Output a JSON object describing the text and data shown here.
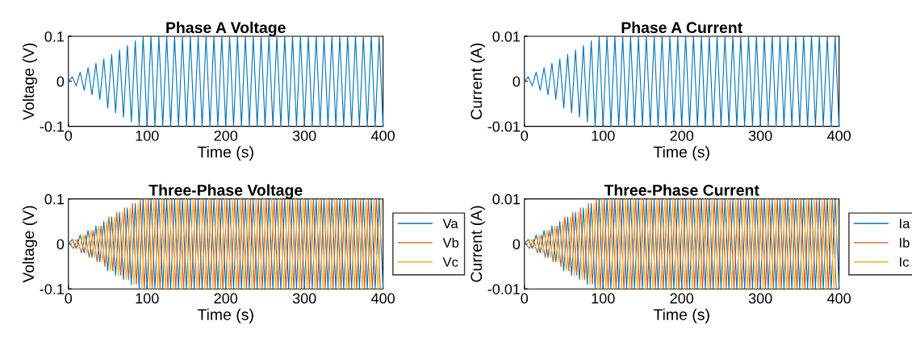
{
  "chart_data": [
    {
      "type": "line",
      "title": "Phase A Voltage",
      "xlabel": "Time (s)",
      "ylabel": "Voltage (V)",
      "xlim": [
        0,
        400
      ],
      "xticks": [
        0,
        100,
        200,
        300,
        400
      ],
      "ylim": [
        -0.1,
        0.1
      ],
      "yticks": [
        -0.1,
        0,
        0.1
      ],
      "grid": false,
      "legend": false,
      "x": [
        0,
        5,
        10,
        15,
        20,
        25,
        30,
        35,
        40,
        45,
        50,
        55,
        60,
        65,
        70,
        75,
        80,
        85,
        90,
        95,
        100,
        105,
        110,
        115,
        120,
        125,
        130,
        135,
        140,
        145,
        150,
        155,
        160,
        165,
        170,
        175,
        180,
        185,
        190,
        195,
        200,
        205,
        210,
        215,
        220,
        225,
        230,
        235,
        240,
        245,
        250,
        255,
        260,
        265,
        270,
        275,
        280,
        285,
        290,
        295,
        300,
        305,
        310,
        315,
        320,
        325,
        330,
        335,
        340,
        345,
        350,
        355,
        360,
        365,
        370,
        375,
        380,
        385,
        390,
        395,
        400
      ],
      "series": [
        {
          "color": "#0072bd",
          "values": [
            0,
            0.01,
            -0.01,
            0.02,
            -0.02,
            0.03,
            -0.03,
            0.04,
            -0.04,
            0.05,
            -0.06,
            0.06,
            -0.07,
            0.07,
            -0.08,
            0.08,
            -0.09,
            0.09,
            -0.1,
            0.1,
            -0.1,
            0.1,
            -0.1,
            0.1,
            -0.1,
            0.1,
            -0.1,
            0.1,
            -0.1,
            0.1,
            -0.1,
            0.1,
            -0.1,
            0.1,
            -0.1,
            0.1,
            -0.1,
            0.1,
            -0.1,
            0.1,
            -0.1,
            0.1,
            -0.1,
            0.1,
            -0.1,
            0.1,
            -0.1,
            0.1,
            -0.1,
            0.1,
            -0.1,
            0.1,
            -0.1,
            0.1,
            -0.1,
            0.1,
            -0.1,
            0.1,
            -0.1,
            0.1,
            -0.1,
            0.1,
            -0.1,
            0.1,
            -0.1,
            0.1,
            -0.1,
            0.1,
            -0.1,
            0.1,
            -0.1,
            0.1,
            -0.1,
            0.1,
            -0.1,
            0.1,
            -0.1,
            0.1,
            -0.1,
            0.1,
            -0.1
          ]
        }
      ]
    },
    {
      "type": "line",
      "title": "Phase A Current",
      "xlabel": "Time (s)",
      "ylabel": "Current (A)",
      "xlim": [
        0,
        400
      ],
      "xticks": [
        0,
        100,
        200,
        300,
        400
      ],
      "ylim": [
        -0.01,
        0.01
      ],
      "yticks": [
        -0.01,
        0,
        0.01
      ],
      "grid": false,
      "legend": false,
      "x": [
        0,
        5,
        10,
        15,
        20,
        25,
        30,
        35,
        40,
        45,
        50,
        55,
        60,
        65,
        70,
        75,
        80,
        85,
        90,
        95,
        100,
        105,
        110,
        115,
        120,
        125,
        130,
        135,
        140,
        145,
        150,
        155,
        160,
        165,
        170,
        175,
        180,
        185,
        190,
        195,
        200,
        205,
        210,
        215,
        220,
        225,
        230,
        235,
        240,
        245,
        250,
        255,
        260,
        265,
        270,
        275,
        280,
        285,
        290,
        295,
        300,
        305,
        310,
        315,
        320,
        325,
        330,
        335,
        340,
        345,
        350,
        355,
        360,
        365,
        370,
        375,
        380,
        385,
        390,
        395,
        400
      ],
      "series": [
        {
          "color": "#0072bd",
          "values": [
            0,
            0.001,
            -0.001,
            0.002,
            -0.002,
            0.003,
            -0.003,
            0.004,
            -0.004,
            0.005,
            -0.006,
            0.006,
            -0.007,
            0.007,
            -0.008,
            0.008,
            -0.009,
            0.009,
            -0.01,
            0.01,
            -0.01,
            0.01,
            -0.01,
            0.01,
            -0.01,
            0.01,
            -0.01,
            0.01,
            -0.01,
            0.01,
            -0.01,
            0.01,
            -0.01,
            0.01,
            -0.01,
            0.01,
            -0.01,
            0.01,
            -0.01,
            0.01,
            -0.01,
            0.01,
            -0.01,
            0.01,
            -0.01,
            0.01,
            -0.01,
            0.01,
            -0.01,
            0.01,
            -0.01,
            0.01,
            -0.01,
            0.01,
            -0.01,
            0.01,
            -0.01,
            0.01,
            -0.01,
            0.01,
            -0.01,
            0.01,
            -0.01,
            0.01,
            -0.01,
            0.01,
            -0.01,
            0.01,
            -0.01,
            0.01,
            -0.01,
            0.01,
            -0.01,
            0.01,
            -0.01,
            0.01,
            -0.01,
            0.01,
            -0.01,
            0.01,
            -0.01
          ]
        }
      ]
    },
    {
      "type": "line",
      "title": "Three-Phase Voltage",
      "xlabel": "Time (s)",
      "ylabel": "Voltage (V)",
      "xlim": [
        0,
        400
      ],
      "xticks": [
        0,
        100,
        200,
        300,
        400
      ],
      "ylim": [
        -0.1,
        0.1
      ],
      "yticks": [
        -0.1,
        0,
        0.1
      ],
      "grid": false,
      "legend": "right",
      "x": [
        0,
        5,
        10,
        15,
        20,
        25,
        30,
        35,
        40,
        45,
        50,
        55,
        60,
        65,
        70,
        75,
        80,
        85,
        90,
        95,
        100,
        105,
        110,
        115,
        120,
        125,
        130,
        135,
        140,
        145,
        150,
        155,
        160,
        165,
        170,
        175,
        180,
        185,
        190,
        195,
        200,
        205,
        210,
        215,
        220,
        225,
        230,
        235,
        240,
        245,
        250,
        255,
        260,
        265,
        270,
        275,
        280,
        285,
        290,
        295,
        300,
        305,
        310,
        315,
        320,
        325,
        330,
        335,
        340,
        345,
        350,
        355,
        360,
        365,
        370,
        375,
        380,
        385,
        390,
        395,
        400
      ],
      "series": [
        {
          "name": "Va",
          "color": "#0072bd",
          "values": [
            0,
            0.01,
            -0.01,
            0.02,
            -0.02,
            0.03,
            -0.03,
            0.04,
            -0.04,
            0.05,
            -0.06,
            0.06,
            -0.07,
            0.07,
            -0.08,
            0.08,
            -0.09,
            0.09,
            -0.1,
            0.1,
            -0.1,
            0.1,
            -0.1,
            0.1,
            -0.1,
            0.1,
            -0.1,
            0.1,
            -0.1,
            0.1,
            -0.1,
            0.1,
            -0.1,
            0.1,
            -0.1,
            0.1,
            -0.1,
            0.1,
            -0.1,
            0.1,
            -0.1,
            0.1,
            -0.1,
            0.1,
            -0.1,
            0.1,
            -0.1,
            0.1,
            -0.1,
            0.1,
            -0.1,
            0.1,
            -0.1,
            0.1,
            -0.1,
            0.1,
            -0.1,
            0.1,
            -0.1,
            0.1,
            -0.1,
            0.1,
            -0.1,
            0.1,
            -0.1,
            0.1,
            -0.1,
            0.1,
            -0.1,
            0.1,
            -0.1,
            0.1,
            -0.1,
            0.1,
            -0.1,
            0.1,
            -0.1,
            0.1,
            -0.1,
            0.1,
            -0.1
          ]
        },
        {
          "name": "Vb",
          "color": "#d95319",
          "x": [
            1.5,
            6.5,
            11.5,
            16.5,
            21.5,
            26.5,
            31.5,
            36.5,
            41.5,
            46.5,
            51.5,
            56.5,
            61.5,
            66.5,
            71.5,
            76.5,
            81.5,
            86.5,
            91.5,
            96.5,
            101.5,
            106.5,
            111.5,
            116.5,
            121.5,
            126.5,
            131.5,
            136.5,
            141.5,
            146.5,
            151.5,
            156.5,
            161.5,
            166.5,
            171.5,
            176.5,
            181.5,
            186.5,
            191.5,
            196.5,
            201.5,
            206.5,
            211.5,
            216.5,
            221.5,
            226.5,
            231.5,
            236.5,
            241.5,
            246.5,
            251.5,
            256.5,
            261.5,
            266.5,
            271.5,
            276.5,
            281.5,
            286.5,
            291.5,
            296.5,
            301.5,
            306.5,
            311.5,
            316.5,
            321.5,
            326.5,
            331.5,
            336.5,
            341.5,
            346.5,
            351.5,
            356.5,
            361.5,
            366.5,
            371.5,
            376.5,
            381.5,
            386.5,
            391.5,
            396.5
          ],
          "values": [
            0,
            -0.01,
            0.01,
            -0.02,
            0.02,
            -0.03,
            0.03,
            -0.04,
            0.04,
            -0.05,
            0.06,
            -0.06,
            0.07,
            -0.07,
            0.08,
            -0.08,
            0.09,
            -0.09,
            0.1,
            -0.1,
            0.1,
            -0.1,
            0.1,
            -0.1,
            0.1,
            -0.1,
            0.1,
            -0.1,
            0.1,
            -0.1,
            0.1,
            -0.1,
            0.1,
            -0.1,
            0.1,
            -0.1,
            0.1,
            -0.1,
            0.1,
            -0.1,
            0.1,
            -0.1,
            0.1,
            -0.1,
            0.1,
            -0.1,
            0.1,
            -0.1,
            0.1,
            -0.1,
            0.1,
            -0.1,
            0.1,
            -0.1,
            0.1,
            -0.1,
            0.1,
            -0.1,
            0.1,
            -0.1,
            0.1,
            -0.1,
            0.1,
            -0.1,
            0.1,
            -0.1,
            0.1,
            -0.1,
            0.1,
            -0.1,
            0.1,
            -0.1,
            0.1,
            -0.1,
            0.1,
            -0.1,
            0.1,
            -0.1,
            0.1,
            -0.1
          ]
        },
        {
          "name": "Vc",
          "color": "#edb120",
          "x": [
            3.5,
            8.5,
            13.5,
            18.5,
            23.5,
            28.5,
            33.5,
            38.5,
            43.5,
            48.5,
            53.5,
            58.5,
            63.5,
            68.5,
            73.5,
            78.5,
            83.5,
            88.5,
            93.5,
            98.5,
            103.5,
            108.5,
            113.5,
            118.5,
            123.5,
            128.5,
            133.5,
            138.5,
            143.5,
            148.5,
            153.5,
            158.5,
            163.5,
            168.5,
            173.5,
            178.5,
            183.5,
            188.5,
            193.5,
            198.5,
            203.5,
            208.5,
            213.5,
            218.5,
            223.5,
            228.5,
            233.5,
            238.5,
            243.5,
            248.5,
            253.5,
            258.5,
            263.5,
            268.5,
            273.5,
            278.5,
            283.5,
            288.5,
            293.5,
            298.5,
            303.5,
            308.5,
            313.5,
            318.5,
            323.5,
            328.5,
            333.5,
            338.5,
            343.5,
            348.5,
            353.5,
            358.5,
            363.5,
            368.5,
            373.5,
            378.5,
            383.5,
            388.5,
            393.5,
            398.5
          ],
          "values": [
            0,
            0.01,
            -0.01,
            0.02,
            -0.02,
            0.03,
            -0.03,
            0.04,
            -0.04,
            0.05,
            -0.06,
            0.06,
            -0.07,
            0.07,
            -0.08,
            0.08,
            -0.09,
            0.09,
            -0.1,
            0.1,
            -0.1,
            0.1,
            -0.1,
            0.1,
            -0.1,
            0.1,
            -0.1,
            0.1,
            -0.1,
            0.1,
            -0.1,
            0.1,
            -0.1,
            0.1,
            -0.1,
            0.1,
            -0.1,
            0.1,
            -0.1,
            0.1,
            -0.1,
            0.1,
            -0.1,
            0.1,
            -0.1,
            0.1,
            -0.1,
            0.1,
            -0.1,
            0.1,
            -0.1,
            0.1,
            -0.1,
            0.1,
            -0.1,
            0.1,
            -0.1,
            0.1,
            -0.1,
            0.1,
            -0.1,
            0.1,
            -0.1,
            0.1,
            -0.1,
            0.1,
            -0.1,
            0.1,
            -0.1,
            0.1,
            -0.1,
            0.1,
            -0.1,
            0.1,
            -0.1,
            0.1,
            -0.1,
            0.1,
            -0.1,
            0.1
          ]
        }
      ]
    },
    {
      "type": "line",
      "title": "Three-Phase Current",
      "xlabel": "Time (s)",
      "ylabel": "Current (A)",
      "xlim": [
        0,
        400
      ],
      "xticks": [
        0,
        100,
        200,
        300,
        400
      ],
      "ylim": [
        -0.01,
        0.01
      ],
      "yticks": [
        -0.01,
        0,
        0.01
      ],
      "grid": false,
      "legend": "right",
      "x": [
        0,
        5,
        10,
        15,
        20,
        25,
        30,
        35,
        40,
        45,
        50,
        55,
        60,
        65,
        70,
        75,
        80,
        85,
        90,
        95,
        100,
        105,
        110,
        115,
        120,
        125,
        130,
        135,
        140,
        145,
        150,
        155,
        160,
        165,
        170,
        175,
        180,
        185,
        190,
        195,
        200,
        205,
        210,
        215,
        220,
        225,
        230,
        235,
        240,
        245,
        250,
        255,
        260,
        265,
        270,
        275,
        280,
        285,
        290,
        295,
        300,
        305,
        310,
        315,
        320,
        325,
        330,
        335,
        340,
        345,
        350,
        355,
        360,
        365,
        370,
        375,
        380,
        385,
        390,
        395,
        400
      ],
      "series": [
        {
          "name": "Ia",
          "color": "#0072bd",
          "values": [
            0,
            0.001,
            -0.001,
            0.002,
            -0.002,
            0.003,
            -0.003,
            0.004,
            -0.004,
            0.005,
            -0.006,
            0.006,
            -0.007,
            0.007,
            -0.008,
            0.008,
            -0.009,
            0.009,
            -0.01,
            0.01,
            -0.01,
            0.01,
            -0.01,
            0.01,
            -0.01,
            0.01,
            -0.01,
            0.01,
            -0.01,
            0.01,
            -0.01,
            0.01,
            -0.01,
            0.01,
            -0.01,
            0.01,
            -0.01,
            0.01,
            -0.01,
            0.01,
            -0.01,
            0.01,
            -0.01,
            0.01,
            -0.01,
            0.01,
            -0.01,
            0.01,
            -0.01,
            0.01,
            -0.01,
            0.01,
            -0.01,
            0.01,
            -0.01,
            0.01,
            -0.01,
            0.01,
            -0.01,
            0.01,
            -0.01,
            0.01,
            -0.01,
            0.01,
            -0.01,
            0.01,
            -0.01,
            0.01,
            -0.01,
            0.01,
            -0.01,
            0.01,
            -0.01,
            0.01,
            -0.01,
            0.01,
            -0.01,
            0.01,
            -0.01,
            0.01,
            -0.01
          ]
        },
        {
          "name": "Ib",
          "color": "#d95319",
          "x": [
            1.5,
            6.5,
            11.5,
            16.5,
            21.5,
            26.5,
            31.5,
            36.5,
            41.5,
            46.5,
            51.5,
            56.5,
            61.5,
            66.5,
            71.5,
            76.5,
            81.5,
            86.5,
            91.5,
            96.5,
            101.5,
            106.5,
            111.5,
            116.5,
            121.5,
            126.5,
            131.5,
            136.5,
            141.5,
            146.5,
            151.5,
            156.5,
            161.5,
            166.5,
            171.5,
            176.5,
            181.5,
            186.5,
            191.5,
            196.5,
            201.5,
            206.5,
            211.5,
            216.5,
            221.5,
            226.5,
            231.5,
            236.5,
            241.5,
            246.5,
            251.5,
            256.5,
            261.5,
            266.5,
            271.5,
            276.5,
            281.5,
            286.5,
            291.5,
            296.5,
            301.5,
            306.5,
            311.5,
            316.5,
            321.5,
            326.5,
            331.5,
            336.5,
            341.5,
            346.5,
            351.5,
            356.5,
            361.5,
            366.5,
            371.5,
            376.5,
            381.5,
            386.5,
            391.5,
            396.5
          ],
          "values": [
            0,
            -0.001,
            0.001,
            -0.002,
            0.002,
            -0.003,
            0.003,
            -0.004,
            0.004,
            -0.005,
            0.006,
            -0.006,
            0.007,
            -0.007,
            0.008,
            -0.008,
            0.009,
            -0.009,
            0.01,
            -0.01,
            0.01,
            -0.01,
            0.01,
            -0.01,
            0.01,
            -0.01,
            0.01,
            -0.01,
            0.01,
            -0.01,
            0.01,
            -0.01,
            0.01,
            -0.01,
            0.01,
            -0.01,
            0.01,
            -0.01,
            0.01,
            -0.01,
            0.01,
            -0.01,
            0.01,
            -0.01,
            0.01,
            -0.01,
            0.01,
            -0.01,
            0.01,
            -0.01,
            0.01,
            -0.01,
            0.01,
            -0.01,
            0.01,
            -0.01,
            0.01,
            -0.01,
            0.01,
            -0.01,
            0.01,
            -0.01,
            0.01,
            -0.01,
            0.01,
            -0.01,
            0.01,
            -0.01,
            0.01,
            -0.01,
            0.01,
            -0.01,
            0.01,
            -0.01,
            0.01,
            -0.01,
            0.01,
            -0.01,
            0.01,
            -0.01
          ]
        },
        {
          "name": "Ic",
          "color": "#edb120",
          "x": [
            3.5,
            8.5,
            13.5,
            18.5,
            23.5,
            28.5,
            33.5,
            38.5,
            43.5,
            48.5,
            53.5,
            58.5,
            63.5,
            68.5,
            73.5,
            78.5,
            83.5,
            88.5,
            93.5,
            98.5,
            103.5,
            108.5,
            113.5,
            118.5,
            123.5,
            128.5,
            133.5,
            138.5,
            143.5,
            148.5,
            153.5,
            158.5,
            163.5,
            168.5,
            173.5,
            178.5,
            183.5,
            188.5,
            193.5,
            198.5,
            203.5,
            208.5,
            213.5,
            218.5,
            223.5,
            228.5,
            233.5,
            238.5,
            243.5,
            248.5,
            253.5,
            258.5,
            263.5,
            268.5,
            273.5,
            278.5,
            283.5,
            288.5,
            293.5,
            298.5,
            303.5,
            308.5,
            313.5,
            318.5,
            323.5,
            328.5,
            333.5,
            338.5,
            343.5,
            348.5,
            353.5,
            358.5,
            363.5,
            368.5,
            373.5,
            378.5,
            383.5,
            388.5,
            393.5,
            398.5
          ],
          "values": [
            0,
            0.001,
            -0.001,
            0.002,
            -0.002,
            0.003,
            -0.003,
            0.004,
            -0.004,
            0.005,
            -0.006,
            0.006,
            -0.007,
            0.007,
            -0.008,
            0.008,
            -0.009,
            0.009,
            -0.01,
            0.01,
            -0.01,
            0.01,
            -0.01,
            0.01,
            -0.01,
            0.01,
            -0.01,
            0.01,
            -0.01,
            0.01,
            -0.01,
            0.01,
            -0.01,
            0.01,
            -0.01,
            0.01,
            -0.01,
            0.01,
            -0.01,
            0.01,
            -0.01,
            0.01,
            -0.01,
            0.01,
            -0.01,
            0.01,
            -0.01,
            0.01,
            -0.01,
            0.01,
            -0.01,
            0.01,
            -0.01,
            0.01,
            -0.01,
            0.01,
            -0.01,
            0.01,
            -0.01,
            0.01,
            -0.01,
            0.01,
            -0.01,
            0.01,
            -0.01,
            0.01,
            -0.01,
            0.01,
            -0.01,
            0.01,
            -0.01,
            0.01,
            -0.01,
            0.01,
            -0.01,
            0.01,
            -0.01,
            0.01,
            -0.01,
            0.01
          ]
        }
      ]
    }
  ]
}
